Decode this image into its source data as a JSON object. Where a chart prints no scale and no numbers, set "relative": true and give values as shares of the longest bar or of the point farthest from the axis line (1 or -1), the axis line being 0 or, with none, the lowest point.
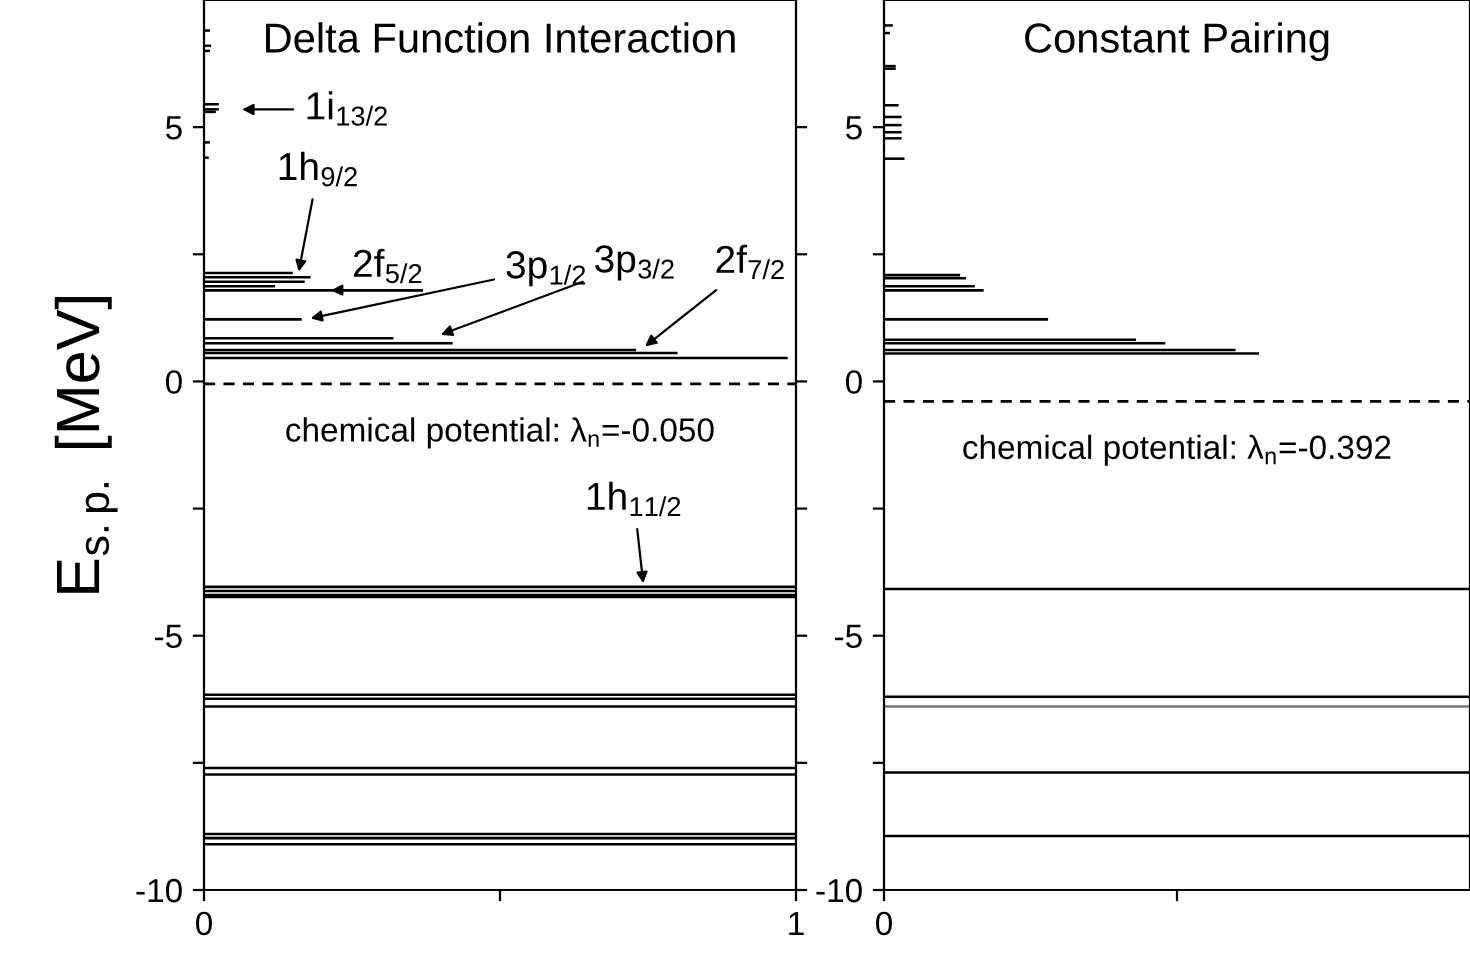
{
  "chart_data": [
    {
      "type": "bar",
      "orientation": "horizontal",
      "title": "Delta Function Interaction",
      "ylabel": "E$_{s.p.}$ [MeV]",
      "x": [
        6.9,
        6.6,
        6.5,
        5.45,
        5.35,
        5.3,
        4.7,
        4.4,
        2.13,
        2.05,
        1.96,
        1.87,
        1.79,
        1.22,
        0.85,
        0.75,
        0.62,
        0.56,
        0.46,
        -4.04,
        -4.12,
        -4.2,
        -4.24,
        -6.16,
        -6.24,
        -6.39,
        -7.6,
        -7.73,
        -8.9,
        -8.98,
        -9.1
      ],
      "values": [
        0.01,
        0.012,
        0.01,
        0.025,
        0.025,
        0.02,
        0.01,
        0.008,
        0.15,
        0.18,
        0.17,
        0.12,
        0.37,
        0.165,
        0.32,
        0.42,
        0.73,
        0.8,
        0.986,
        1,
        1,
        1,
        1,
        1,
        1,
        1,
        1,
        1,
        1,
        1,
        1
      ],
      "color": "#000000",
      "xlim": [
        0,
        1
      ],
      "xticks": [
        0,
        {
          "value": 0.5,
          "label": null
        },
        1
      ],
      "ylim": [
        -10,
        7.5
      ],
      "yticks": [
        -10,
        {
          "value": -7.5,
          "label": null
        },
        -5,
        {
          "value": -2.5,
          "label": null
        },
        0,
        {
          "value": 2.5,
          "label": null
        },
        5
      ],
      "ref_lines": [
        {
          "axis": "y",
          "value": -0.05,
          "label": "chemical potential: λ$_{n}$=-0.050",
          "line_style": "dashed",
          "color": "#000000"
        }
      ],
      "annotations": [
        "1i$_{13/2}$",
        {
          "text": "1h$_{9/2}$",
          "x": 0.16,
          "y": 2.16
        },
        "2f$_{5/2}$",
        {
          "text": "3p$_{1/2}$",
          "x": 0.18,
          "y": 1.24
        },
        {
          "text": "3p$_{3/2}$",
          "x": 0.4,
          "y": 0.92
        },
        {
          "text": "2f$_{7/2}$",
          "x": 0.745,
          "y": 0.69
        },
        {
          "text": "1h$_{11/2}$",
          "x": 0.742,
          "y": -3.97
        }
      ],
      "grid": false,
      "legend": false
    },
    {
      "type": "bar",
      "orientation": "horizontal",
      "title": "Constant Pairing",
      "x": [
        7.0,
        6.85,
        6.2,
        6.15,
        5.43,
        5.2,
        5.04,
        4.9,
        4.78,
        4.38,
        2.09,
        2.03,
        1.87,
        1.79,
        1.22,
        0.82,
        0.75,
        0.62,
        0.55,
        -4.08,
        -6.2,
        -6.39,
        -7.69,
        -8.94
      ],
      "values": [
        0.015,
        0.01,
        0.02,
        0.02,
        0.025,
        0.03,
        0.03,
        0.03,
        0.03,
        0.035,
        0.13,
        0.14,
        0.155,
        0.17,
        0.28,
        0.43,
        0.48,
        0.6,
        0.64,
        1,
        1,
        1,
        1,
        1
      ],
      "colors": [
        "#000000",
        "#000000",
        "#000000",
        "#000000",
        "#000000",
        "#000000",
        "#000000",
        "#000000",
        "#000000",
        "#000000",
        "#000000",
        "#000000",
        "#000000",
        "#000000",
        "#000000",
        "#000000",
        "#000000",
        "#000000",
        "#000000",
        "#000000",
        "#000000",
        "#777777",
        "#000000",
        "#000000"
      ],
      "relative": true,
      "annotations": [
        "0"
      ],
      "ylim": [
        -10,
        7.5
      ],
      "yticks": [
        -10,
        {
          "value": -7.5,
          "label": null
        },
        -5,
        {
          "value": -2.5,
          "label": null
        },
        0,
        {
          "value": 2.5,
          "label": null
        },
        5
      ],
      "ref_lines": [
        {
          "axis": "y",
          "value": -0.392,
          "label": "chemical potential: λ$_{n}$=-0.392",
          "line_style": "dashed",
          "color": "#000000"
        }
      ],
      "grid": false,
      "legend": false
    }
  ]
}
